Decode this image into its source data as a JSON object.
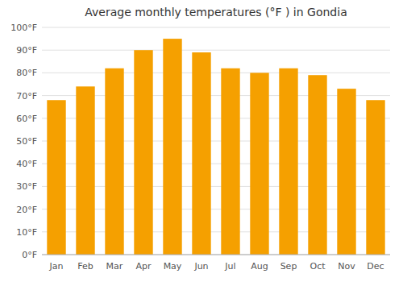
{
  "chart_data": {
    "type": "bar",
    "title": "Average monthly temperatures (°F ) in Gondia",
    "categories": [
      "Jan",
      "Feb",
      "Mar",
      "Apr",
      "May",
      "Jun",
      "Jul",
      "Aug",
      "Sep",
      "Oct",
      "Nov",
      "Dec"
    ],
    "values": [
      68,
      74,
      82,
      90,
      95,
      89,
      82,
      80,
      82,
      79,
      73,
      68
    ],
    "color": "#F5A000",
    "ylim": [
      0,
      100
    ],
    "yticks": [
      {
        "value": 0,
        "label": "0°F"
      },
      {
        "value": 10,
        "label": "10°F"
      },
      {
        "value": 20,
        "label": "20°F"
      },
      {
        "value": 30,
        "label": "30°F"
      },
      {
        "value": 40,
        "label": "40°F"
      },
      {
        "value": 50,
        "label": "50°F"
      },
      {
        "value": 60,
        "label": "60°F"
      },
      {
        "value": 70,
        "label": "70°F"
      },
      {
        "value": 80,
        "label": "80°F"
      },
      {
        "value": 90,
        "label": "90°F"
      },
      {
        "value": 100,
        "label": "100°F"
      }
    ],
    "grid": true
  }
}
